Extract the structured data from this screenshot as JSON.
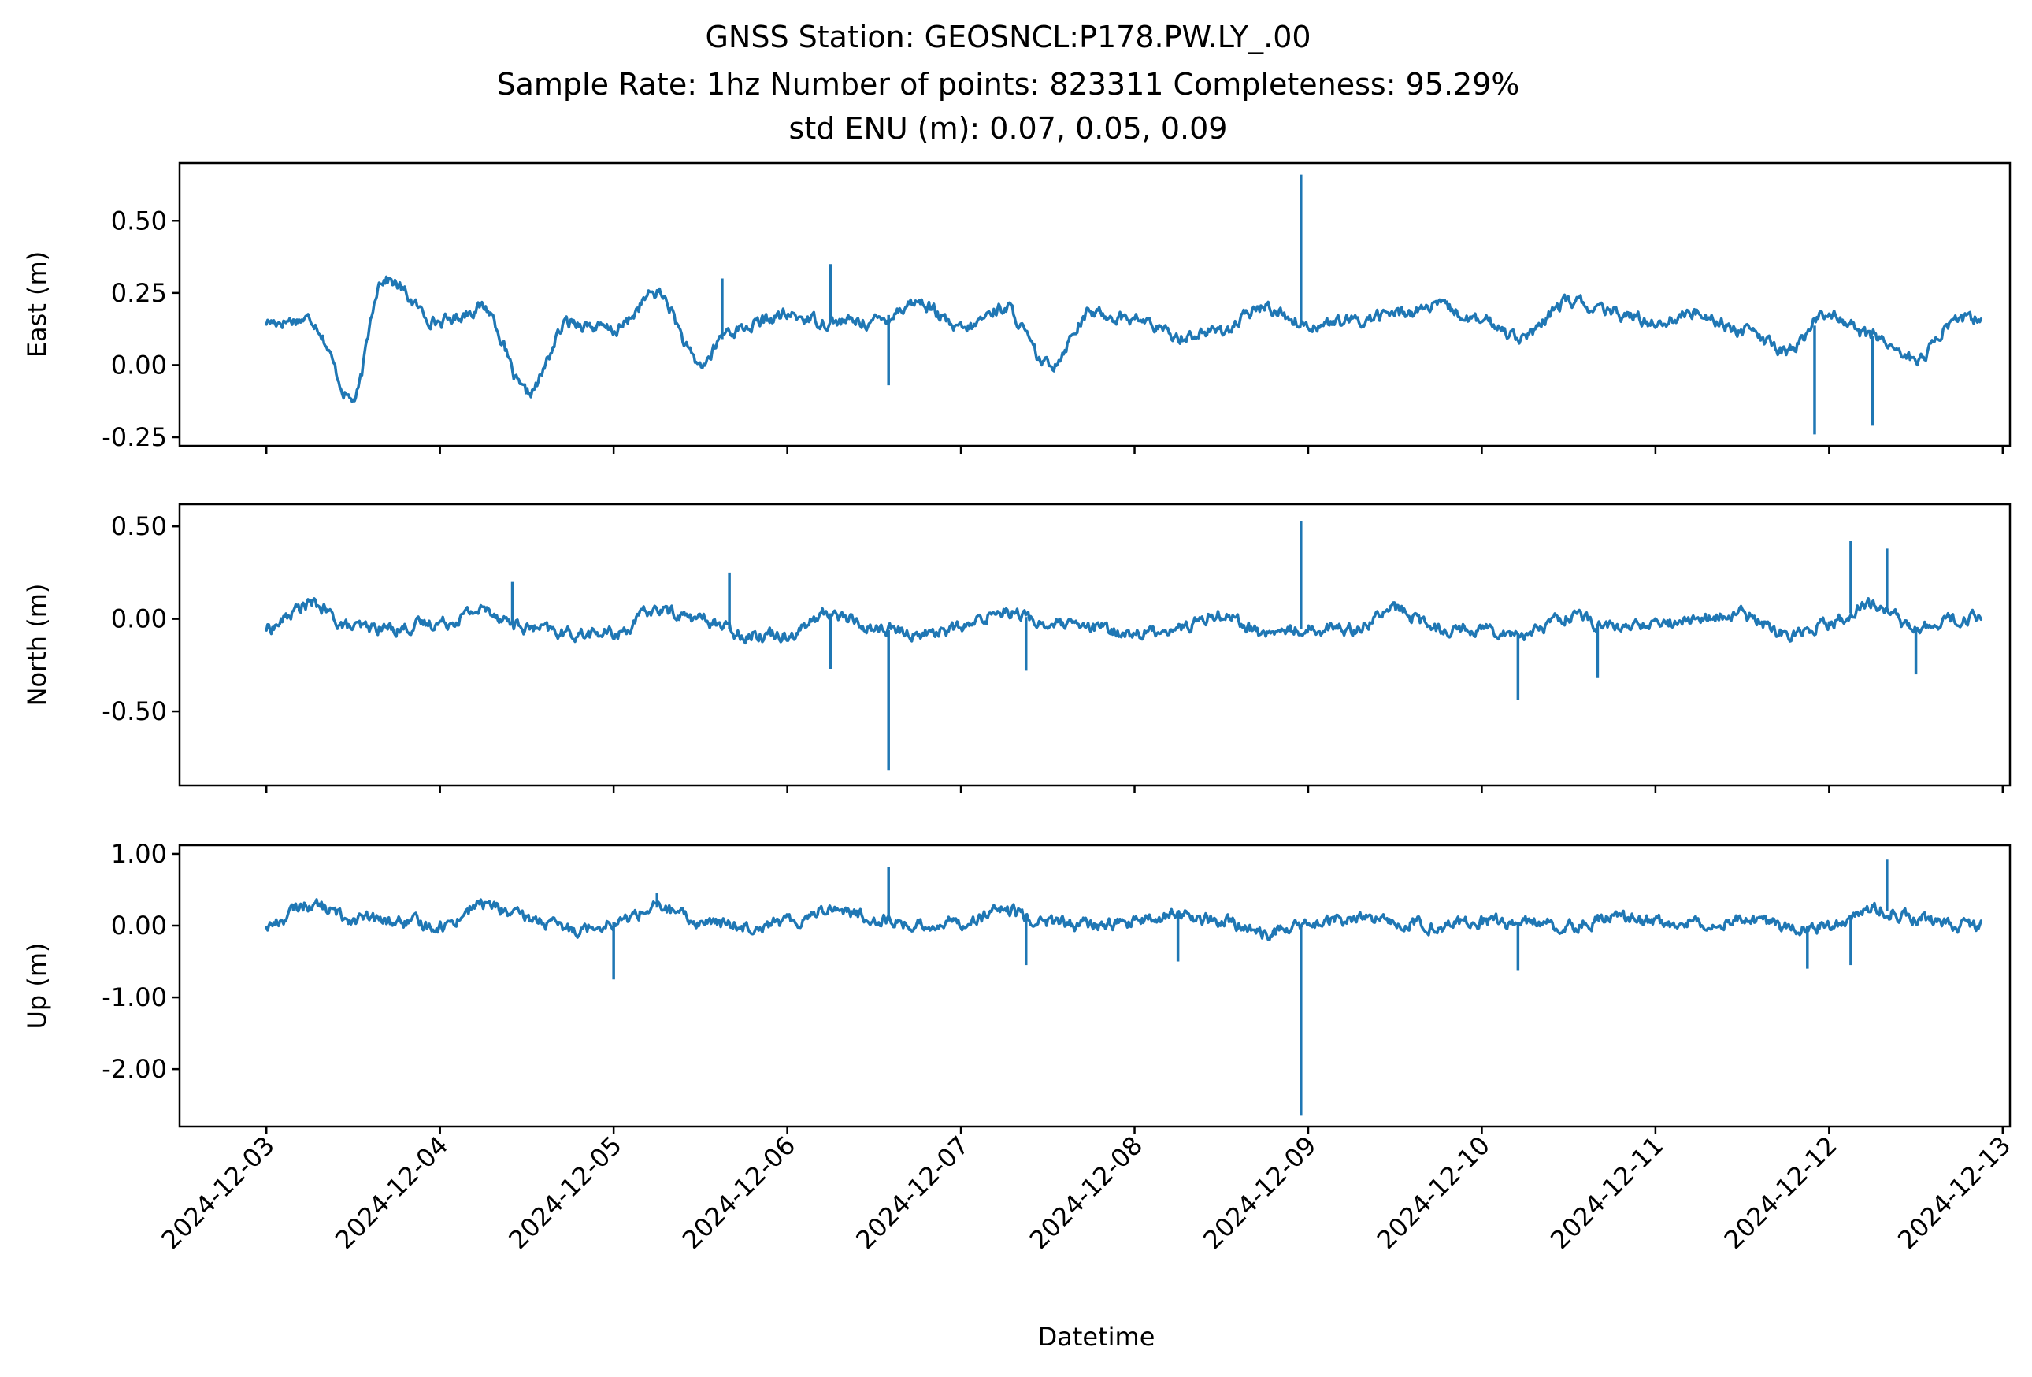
{
  "title": {
    "line1": "GNSS Station: GEOSNCL:P178.PW.LY_.00",
    "line2": "Sample Rate: 1hz   Number of points: 823311    Completeness:  95.29%",
    "line3": "std ENU (m):  0.07, 0.05, 0.09"
  },
  "colors": {
    "series": "#1f77b4"
  },
  "chart_data": [
    {
      "type": "line",
      "ylabel": "East (m)",
      "xlabel": "",
      "xlim": [
        "2024-12-02T12:00",
        "2024-12-13T01:00"
      ],
      "ylim": [
        -0.28,
        0.7
      ],
      "yticks": [
        0.5,
        0.25,
        0.0,
        -0.25
      ],
      "ytick_labels": [
        "0.50",
        "0.25",
        "0.00",
        "-0.25"
      ],
      "x_ticks_shown_labels": false,
      "grid": false,
      "x": [
        "2024-12-03T00:00",
        "2024-12-03T06:00",
        "2024-12-03T12:00",
        "2024-12-03T16:00",
        "2024-12-04T00:00",
        "2024-12-04T06:00",
        "2024-12-04T12:00",
        "2024-12-04T18:00",
        "2024-12-05T00:00",
        "2024-12-05T06:00",
        "2024-12-05T12:00",
        "2024-12-05T16:00",
        "2024-12-06T00:00",
        "2024-12-06T06:00",
        "2024-12-06T12:00",
        "2024-12-06T18:00",
        "2024-12-07T00:00",
        "2024-12-07T06:00",
        "2024-12-07T12:00",
        "2024-12-07T18:00",
        "2024-12-08T00:00",
        "2024-12-08T06:00",
        "2024-12-08T12:00",
        "2024-12-08T18:00",
        "2024-12-09T00:00",
        "2024-12-09T06:00",
        "2024-12-09T12:00",
        "2024-12-09T18:00",
        "2024-12-10T00:00",
        "2024-12-10T06:00",
        "2024-12-10T12:00",
        "2024-12-10T18:00",
        "2024-12-11T00:00",
        "2024-12-11T06:00",
        "2024-12-11T12:00",
        "2024-12-11T18:00",
        "2024-12-12T00:00",
        "2024-12-12T06:00",
        "2024-12-12T12:00",
        "2024-12-12T18:00"
      ],
      "values": [
        0.15,
        0.16,
        -0.12,
        0.3,
        0.15,
        0.2,
        -0.1,
        0.15,
        0.12,
        0.25,
        0.0,
        0.12,
        0.17,
        0.15,
        0.15,
        0.22,
        0.12,
        0.2,
        0.0,
        0.18,
        0.16,
        0.1,
        0.12,
        0.2,
        0.14,
        0.15,
        0.18,
        0.2,
        0.15,
        0.1,
        0.22,
        0.18,
        0.15,
        0.18,
        0.12,
        0.05,
        0.18,
        0.1,
        0.02,
        0.16
      ],
      "spikes": [
        {
          "x": "2024-12-05T15:00",
          "y": 0.3
        },
        {
          "x": "2024-12-06T06:00",
          "y": 0.35
        },
        {
          "x": "2024-12-06T14:00",
          "y": -0.07
        },
        {
          "x": "2024-12-08T23:00",
          "y": 0.66
        },
        {
          "x": "2024-12-11T22:00",
          "y": -0.24
        },
        {
          "x": "2024-12-12T06:00",
          "y": -0.21
        }
      ]
    },
    {
      "type": "line",
      "ylabel": "North (m)",
      "xlabel": "",
      "xlim": [
        "2024-12-02T12:00",
        "2024-12-13T01:00"
      ],
      "ylim": [
        -0.9,
        0.62
      ],
      "yticks": [
        0.5,
        0.0,
        -0.5
      ],
      "ytick_labels": [
        "0.50",
        "0.00",
        "-0.50"
      ],
      "x_ticks_shown_labels": false,
      "grid": false,
      "x": [
        "2024-12-03T00:00",
        "2024-12-03T06:00",
        "2024-12-03T12:00",
        "2024-12-03T18:00",
        "2024-12-04T00:00",
        "2024-12-04T06:00",
        "2024-12-04T12:00",
        "2024-12-04T18:00",
        "2024-12-05T00:00",
        "2024-12-05T06:00",
        "2024-12-05T12:00",
        "2024-12-05T18:00",
        "2024-12-06T00:00",
        "2024-12-06T06:00",
        "2024-12-06T12:00",
        "2024-12-06T18:00",
        "2024-12-07T00:00",
        "2024-12-07T06:00",
        "2024-12-07T12:00",
        "2024-12-07T18:00",
        "2024-12-08T00:00",
        "2024-12-08T06:00",
        "2024-12-08T12:00",
        "2024-12-08T18:00",
        "2024-12-09T00:00",
        "2024-12-09T06:00",
        "2024-12-09T12:00",
        "2024-12-09T18:00",
        "2024-12-10T00:00",
        "2024-12-10T06:00",
        "2024-12-10T12:00",
        "2024-12-10T18:00",
        "2024-12-11T00:00",
        "2024-12-11T06:00",
        "2024-12-11T12:00",
        "2024-12-11T18:00",
        "2024-12-12T00:00",
        "2024-12-12T06:00",
        "2024-12-12T12:00",
        "2024-12-12T18:00"
      ],
      "values": [
        -0.05,
        0.08,
        -0.05,
        -0.05,
        -0.02,
        0.05,
        -0.05,
        -0.08,
        -0.08,
        0.05,
        0.0,
        -0.08,
        -0.08,
        0.03,
        -0.05,
        -0.08,
        -0.05,
        0.05,
        -0.03,
        -0.05,
        -0.08,
        -0.05,
        0.03,
        -0.08,
        -0.05,
        -0.05,
        0.05,
        -0.05,
        -0.05,
        -0.08,
        0.02,
        -0.05,
        -0.03,
        0.0,
        0.02,
        -0.08,
        -0.02,
        0.08,
        -0.05,
        0.0
      ],
      "spikes": [
        {
          "x": "2024-12-04T10:00",
          "y": 0.2
        },
        {
          "x": "2024-12-05T16:00",
          "y": 0.25
        },
        {
          "x": "2024-12-06T06:00",
          "y": -0.27
        },
        {
          "x": "2024-12-06T14:00",
          "y": -0.82
        },
        {
          "x": "2024-12-07T09:00",
          "y": -0.28
        },
        {
          "x": "2024-12-08T23:00",
          "y": 0.53
        },
        {
          "x": "2024-12-10T05:00",
          "y": -0.44
        },
        {
          "x": "2024-12-10T16:00",
          "y": -0.32
        },
        {
          "x": "2024-12-12T03:00",
          "y": 0.42
        },
        {
          "x": "2024-12-12T08:00",
          "y": 0.38
        },
        {
          "x": "2024-12-12T12:00",
          "y": -0.3
        }
      ]
    },
    {
      "type": "line",
      "ylabel": "Up (m)",
      "xlabel": "Datetime",
      "xlim": [
        "2024-12-02T12:00",
        "2024-12-13T01:00"
      ],
      "ylim": [
        -2.8,
        1.12
      ],
      "yticks": [
        1.0,
        0.0,
        -1.0,
        -2.0
      ],
      "ytick_labels": [
        "1.00",
        "0.00",
        "-1.00",
        "-2.00"
      ],
      "x_ticks": [
        "2024-12-03",
        "2024-12-04",
        "2024-12-05",
        "2024-12-06",
        "2024-12-07",
        "2024-12-08",
        "2024-12-09",
        "2024-12-10",
        "2024-12-11",
        "2024-12-12",
        "2024-12-13"
      ],
      "x_tick_labels": [
        "2024-12-03",
        "2024-12-04",
        "2024-12-05",
        "2024-12-06",
        "2024-12-07",
        "2024-12-08",
        "2024-12-09",
        "2024-12-10",
        "2024-12-11",
        "2024-12-12",
        "2024-12-13"
      ],
      "grid": false,
      "x": [
        "2024-12-03T00:00",
        "2024-12-03T06:00",
        "2024-12-03T12:00",
        "2024-12-03T18:00",
        "2024-12-04T00:00",
        "2024-12-04T06:00",
        "2024-12-04T12:00",
        "2024-12-04T18:00",
        "2024-12-05T00:00",
        "2024-12-05T06:00",
        "2024-12-05T12:00",
        "2024-12-05T18:00",
        "2024-12-06T00:00",
        "2024-12-06T06:00",
        "2024-12-06T12:00",
        "2024-12-06T18:00",
        "2024-12-07T00:00",
        "2024-12-07T06:00",
        "2024-12-07T12:00",
        "2024-12-07T18:00",
        "2024-12-08T00:00",
        "2024-12-08T06:00",
        "2024-12-08T12:00",
        "2024-12-08T18:00",
        "2024-12-09T00:00",
        "2024-12-09T06:00",
        "2024-12-09T12:00",
        "2024-12-09T18:00",
        "2024-12-10T00:00",
        "2024-12-10T06:00",
        "2024-12-10T12:00",
        "2024-12-10T18:00",
        "2024-12-11T00:00",
        "2024-12-11T06:00",
        "2024-12-11T12:00",
        "2024-12-11T18:00",
        "2024-12-12T00:00",
        "2024-12-12T06:00",
        "2024-12-12T12:00",
        "2024-12-12T18:00"
      ],
      "values": [
        0.0,
        0.3,
        0.1,
        0.05,
        0.0,
        0.3,
        0.1,
        -0.05,
        0.05,
        0.25,
        0.05,
        0.0,
        0.05,
        0.25,
        0.1,
        0.0,
        0.05,
        0.2,
        0.05,
        0.0,
        0.05,
        0.15,
        0.05,
        -0.1,
        0.0,
        0.1,
        0.05,
        0.0,
        0.05,
        0.05,
        0.0,
        0.1,
        0.05,
        0.05,
        0.1,
        0.0,
        0.0,
        0.25,
        0.1,
        0.0
      ],
      "spikes": [
        {
          "x": "2024-12-05T00:00",
          "y": -0.75
        },
        {
          "x": "2024-12-05T06:00",
          "y": 0.45
        },
        {
          "x": "2024-12-06T14:00",
          "y": 0.82
        },
        {
          "x": "2024-12-07T09:00",
          "y": -0.55
        },
        {
          "x": "2024-12-08T06:00",
          "y": -0.5
        },
        {
          "x": "2024-12-08T23:00",
          "y": -2.65
        },
        {
          "x": "2024-12-10T05:00",
          "y": -0.62
        },
        {
          "x": "2024-12-11T21:00",
          "y": -0.6
        },
        {
          "x": "2024-12-12T03:00",
          "y": -0.55
        },
        {
          "x": "2024-12-12T08:00",
          "y": 0.92
        }
      ]
    }
  ]
}
